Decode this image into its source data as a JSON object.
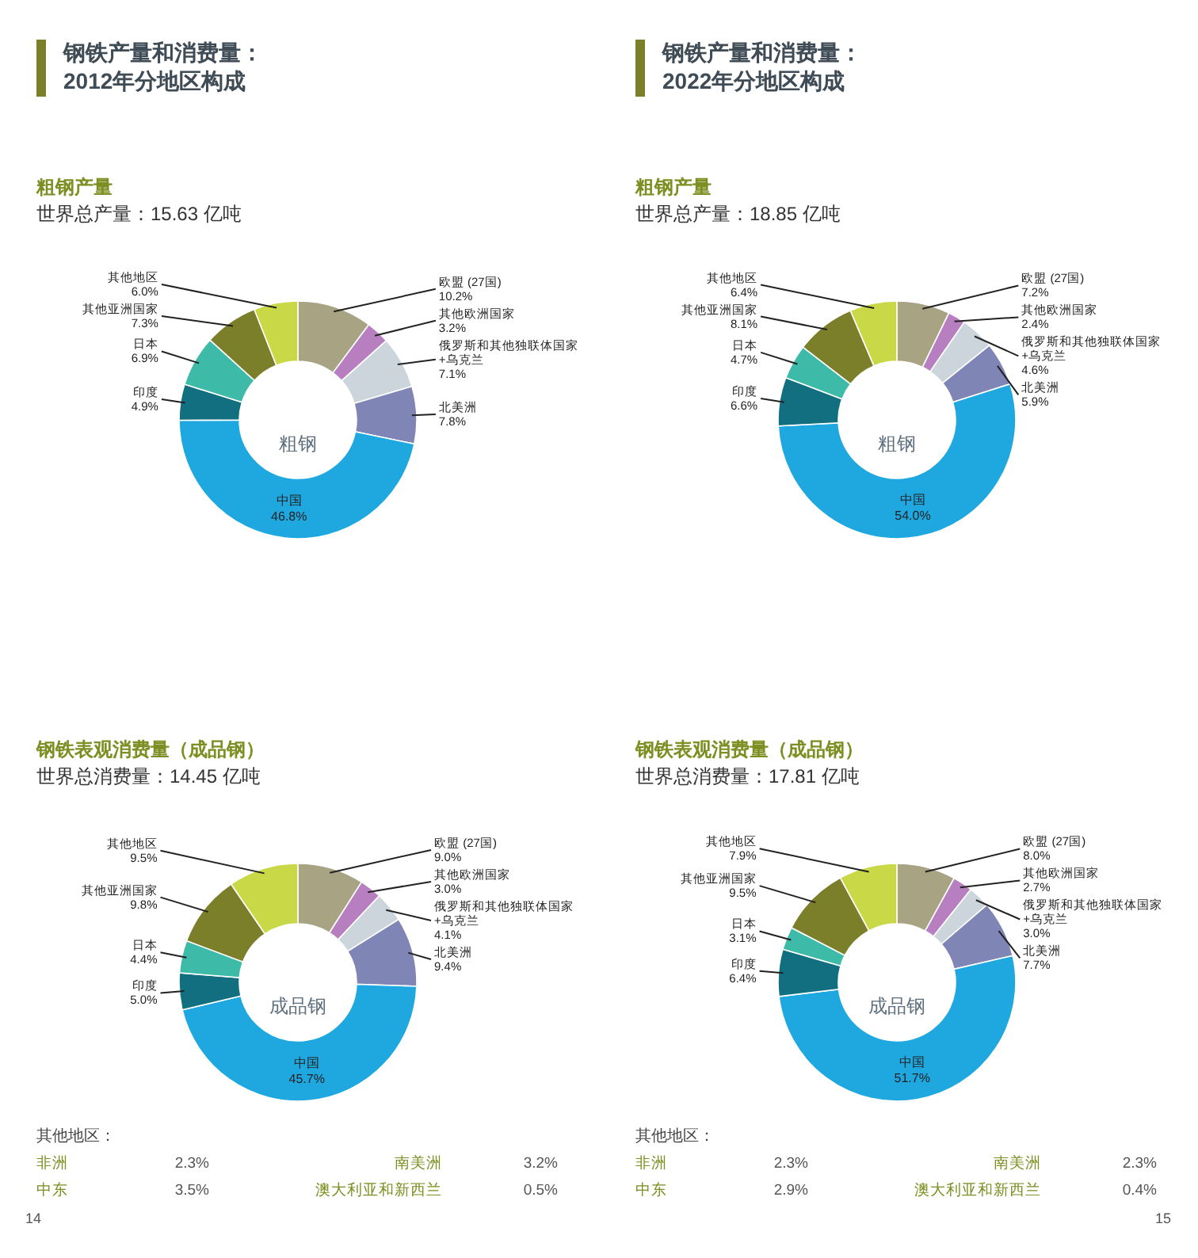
{
  "chart_data": [
    {
      "type": "donut",
      "title": "粗钢产量",
      "subtitle": "世界总产量：15.63 亿吨",
      "categories": [
        "欧盟 (27国)",
        "其他欧洲国家",
        "俄罗斯和其他独联体国家\n+乌克兰",
        "北美洲",
        "中国",
        "印度",
        "日本",
        "其他亚洲国家",
        "其他地区"
      ],
      "values": [
        10.2,
        3.2,
        7.1,
        7.8,
        46.8,
        4.9,
        6.9,
        7.3,
        6.0
      ],
      "value_labels": [
        "10.2%",
        "3.2%",
        "7.1%",
        "7.8%",
        "46.8%",
        "4.9%",
        "6.9%",
        "7.3%",
        "6.0%"
      ],
      "colors": [
        "#a8a383",
        "#b87fc0",
        "#ccd5dc",
        "#7f86b5",
        "#1fa8e0",
        "#126f80",
        "#3dbaa8",
        "#7c7f2a",
        "#c8d846"
      ],
      "annotations": [
        "粗钢",
        "钢铁产量和消费量：\n2012年分地区构成"
      ]
    },
    {
      "type": "donut",
      "title": "粗钢产量",
      "subtitle": "世界总产量：18.85 亿吨",
      "categories": [
        "欧盟 (27国)",
        "其他欧洲国家",
        "俄罗斯和其他独联体国家\n+乌克兰",
        "北美洲",
        "中国",
        "印度",
        "日本",
        "其他亚洲国家",
        "其他地区"
      ],
      "values": [
        7.2,
        2.4,
        4.6,
        5.9,
        54.0,
        6.6,
        4.7,
        8.1,
        6.4
      ],
      "value_labels": [
        "7.2%",
        "2.4%",
        "4.6%",
        "5.9%",
        "54.0%",
        "6.6%",
        "4.7%",
        "8.1%",
        "6.4%"
      ],
      "colors": [
        "#a8a383",
        "#b87fc0",
        "#ccd5dc",
        "#7f86b5",
        "#1fa8e0",
        "#126f80",
        "#3dbaa8",
        "#7c7f2a",
        "#c8d846"
      ],
      "annotations": [
        "粗钢",
        "钢铁产量和消费量：\n2022年分地区构成"
      ]
    },
    {
      "type": "donut",
      "title": "钢铁表观消费量（成品钢）",
      "subtitle": "世界总消费量：14.45 亿吨",
      "categories": [
        "欧盟 (27国)",
        "其他欧洲国家",
        "俄罗斯和其他独联体国家\n+乌克兰",
        "北美洲",
        "中国",
        "印度",
        "日本",
        "其他亚洲国家",
        "其他地区"
      ],
      "values": [
        9.0,
        3.0,
        4.1,
        9.4,
        45.7,
        5.0,
        4.4,
        9.8,
        9.5
      ],
      "value_labels": [
        "9.0%",
        "3.0%",
        "4.1%",
        "9.4%",
        "45.7%",
        "5.0%",
        "4.4%",
        "9.8%",
        "9.5%"
      ],
      "colors": [
        "#a8a383",
        "#b87fc0",
        "#ccd5dc",
        "#7f86b5",
        "#1fa8e0",
        "#126f80",
        "#3dbaa8",
        "#7c7f2a",
        "#c8d846"
      ],
      "annotations": [
        "成品钢",
        "其他地区：",
        "非洲",
        "2.3%",
        "南美洲",
        "3.2%",
        "中东",
        "3.5%",
        "澳大利亚和新西兰",
        "0.5%",
        "14"
      ]
    },
    {
      "type": "donut",
      "title": "钢铁表观消费量（成品钢）",
      "subtitle": "世界总消费量：17.81 亿吨",
      "categories": [
        "欧盟 (27国)",
        "其他欧洲国家",
        "俄罗斯和其他独联体国家\n+乌克兰",
        "北美洲",
        "中国",
        "印度",
        "日本",
        "其他亚洲国家",
        "其他地区"
      ],
      "values": [
        8.0,
        2.7,
        3.0,
        7.7,
        51.7,
        6.4,
        3.1,
        9.5,
        7.9
      ],
      "value_labels": [
        "8.0%",
        "2.7%",
        "3.0%",
        "7.7%",
        "51.7%",
        "6.4%",
        "3.1%",
        "9.5%",
        "7.9%"
      ],
      "colors": [
        "#a8a383",
        "#b87fc0",
        "#ccd5dc",
        "#7f86b5",
        "#1fa8e0",
        "#126f80",
        "#3dbaa8",
        "#7c7f2a",
        "#c8d846"
      ],
      "annotations": [
        "成品钢",
        "其他地区：",
        "非洲",
        "2.3%",
        "南美洲",
        "2.3%",
        "中东",
        "2.9%",
        "澳大利亚和新西兰",
        "0.4%",
        "15"
      ]
    }
  ]
}
